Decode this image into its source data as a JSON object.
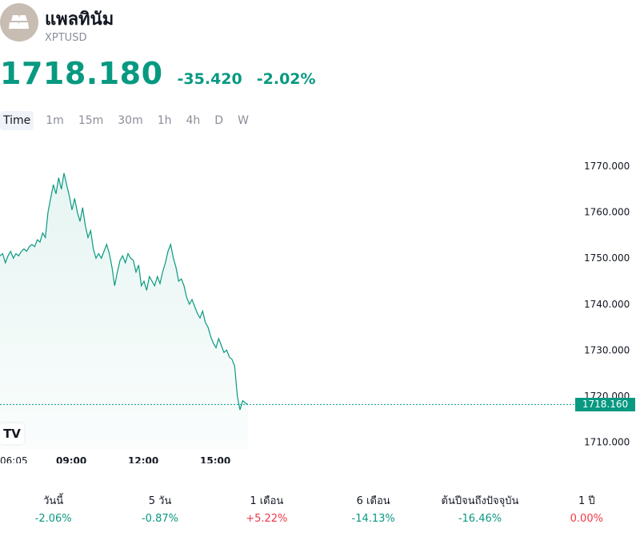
{
  "header": {
    "logo_icon": "gold-bars-icon",
    "title": "แพลทินัม",
    "ticker": "XPTUSD"
  },
  "quote": {
    "price": "1718.180",
    "change": "-35.420",
    "change_pct": "-2.02%",
    "color": "#089981"
  },
  "timeframes": [
    "Time",
    "1m",
    "15m",
    "30m",
    "1h",
    "4h",
    "D",
    "W"
  ],
  "active_timeframe": "Time",
  "chart_data": {
    "type": "line",
    "color": "#089981",
    "fill": "area",
    "y_ticks": [
      "1770.000",
      "1760.000",
      "1750.000",
      "1740.000",
      "1730.000",
      "1720.000",
      "1710.000"
    ],
    "ylim": [
      1708.5,
      1773.5
    ],
    "x_ticks": [
      {
        "label": "06:05",
        "bold": false
      },
      {
        "label": "09:00",
        "bold": true
      },
      {
        "label": "12:00",
        "bold": true
      },
      {
        "label": "15:00",
        "bold": true
      }
    ],
    "current_price_label": "1718.160",
    "current_price": 1718.16,
    "series": [
      {
        "values": [
          1750.5,
          1751.0,
          1749.0,
          1750.5,
          1751.5,
          1750.0,
          1751.0,
          1750.5,
          1751.5,
          1752.0,
          1751.5,
          1752.5,
          1753.0,
          1752.5,
          1754.0,
          1753.5,
          1755.5,
          1754.5,
          1760.0,
          1763.0,
          1766.0,
          1764.0,
          1767.5,
          1765.0,
          1768.5,
          1766.0,
          1763.5,
          1760.5,
          1763.0,
          1760.0,
          1758.0,
          1761.0,
          1757.0,
          1754.5,
          1756.0,
          1752.0,
          1750.0,
          1751.0,
          1750.0,
          1751.5,
          1753.0,
          1751.0,
          1748.0,
          1744.0,
          1747.0,
          1749.5,
          1750.5,
          1749.0,
          1751.0,
          1750.0,
          1749.5,
          1747.0,
          1748.5,
          1744.0,
          1745.0,
          1743.0,
          1746.0,
          1745.0,
          1744.0,
          1746.0,
          1744.5,
          1747.0,
          1749.0,
          1751.5,
          1753.0,
          1750.0,
          1748.0,
          1745.0,
          1745.5,
          1744.0,
          1741.5,
          1740.0,
          1741.0,
          1739.5,
          1738.0,
          1737.0,
          1738.5,
          1736.0,
          1735.0,
          1733.0,
          1731.5,
          1730.5,
          1732.5,
          1731.0,
          1729.5,
          1730.0,
          1728.5,
          1728.0,
          1726.5,
          1720.0,
          1717.0,
          1719.0,
          1718.5,
          1718.16
        ]
      }
    ]
  },
  "performance": [
    {
      "label": "วันนี้",
      "value": "-2.06%",
      "dir": "neg"
    },
    {
      "label": "5 วัน",
      "value": "-0.87%",
      "dir": "neg"
    },
    {
      "label": "1 เดือน",
      "value": "+5.22%",
      "dir": "pos"
    },
    {
      "label": "6 เดือน",
      "value": "-14.13%",
      "dir": "neg"
    },
    {
      "label": "ต้นปีจนถึงปัจจุบัน",
      "value": "-16.46%",
      "dir": "neg"
    },
    {
      "label": "1 ปี",
      "value": "0.00%",
      "dir": "pos"
    }
  ],
  "tv_logo_text": "TV"
}
